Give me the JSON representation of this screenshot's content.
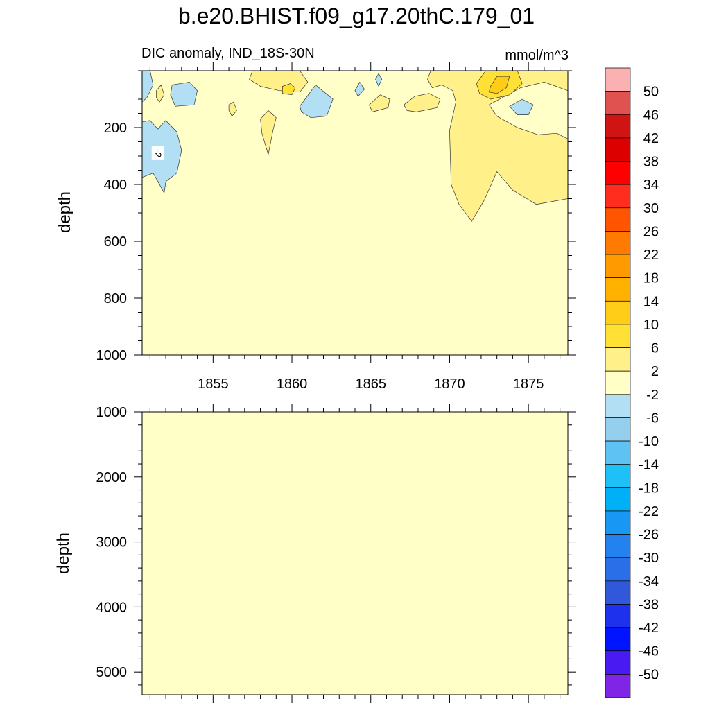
{
  "chart_data": [
    {
      "type": "heatmap",
      "title": "b.e20.BHIST.f09_g17.20thC.179_01",
      "subtitle_left": "DIC anomaly, IND_18S-30N",
      "subtitle_right": "mmol/m^3",
      "ylabel": "depth",
      "xlim": [
        1850.5,
        1877.5
      ],
      "ylim": [
        1000,
        0
      ],
      "xticks": [
        1855,
        1860,
        1865,
        1870,
        1875
      ],
      "yticks": [
        200,
        400,
        600,
        800,
        1000
      ],
      "background_level": 0,
      "contour_label": "-2",
      "regions": [
        {
          "value": -4,
          "points": [
            [
              1850.5,
              0
            ],
            [
              1851.0,
              0
            ],
            [
              1851.2,
              50
            ],
            [
              1850.8,
              95
            ],
            [
              1850.5,
              110
            ]
          ]
        },
        {
          "value": 4,
          "points": [
            [
              1851.4,
              70
            ],
            [
              1851.7,
              50
            ],
            [
              1851.9,
              85
            ],
            [
              1851.6,
              110
            ],
            [
              1851.4,
              95
            ]
          ]
        },
        {
          "value": -4,
          "points": [
            [
              1852.4,
              50
            ],
            [
              1853.5,
              40
            ],
            [
              1854.0,
              70
            ],
            [
              1853.8,
              120
            ],
            [
              1852.6,
              125
            ],
            [
              1852.3,
              85
            ]
          ]
        },
        {
          "value": -4,
          "points": [
            [
              1850.5,
              180
            ],
            [
              1851.0,
              175
            ],
            [
              1851.5,
              205
            ],
            [
              1852.0,
              175
            ],
            [
              1852.7,
              215
            ],
            [
              1853.0,
              280
            ],
            [
              1852.7,
              360
            ],
            [
              1852.0,
              390
            ],
            [
              1851.9,
              430
            ],
            [
              1851.2,
              360
            ],
            [
              1850.5,
              375
            ]
          ]
        },
        {
          "value": 4,
          "points": [
            [
              1856.0,
              120
            ],
            [
              1856.3,
              110
            ],
            [
              1856.5,
              140
            ],
            [
              1856.2,
              160
            ],
            [
              1856.0,
              140
            ]
          ]
        },
        {
          "value": 4,
          "points": [
            [
              1857.5,
              0
            ],
            [
              1860.5,
              0
            ],
            [
              1861.0,
              40
            ],
            [
              1860.5,
              75
            ],
            [
              1859.2,
              70
            ],
            [
              1858.0,
              55
            ],
            [
              1857.3,
              30
            ]
          ]
        },
        {
          "value": 8,
          "points": [
            [
              1859.4,
              55
            ],
            [
              1859.9,
              45
            ],
            [
              1860.2,
              60
            ],
            [
              1860.0,
              85
            ],
            [
              1859.4,
              80
            ]
          ]
        },
        {
          "value": 4,
          "points": [
            [
              1858.0,
              170
            ],
            [
              1858.5,
              140
            ],
            [
              1859.0,
              165
            ],
            [
              1858.8,
              210
            ],
            [
              1858.5,
              295
            ],
            [
              1858.1,
              220
            ]
          ]
        },
        {
          "value": -4,
          "points": [
            [
              1860.5,
              125
            ],
            [
              1861.5,
              50
            ],
            [
              1862.6,
              100
            ],
            [
              1862.2,
              160
            ],
            [
              1861.2,
              165
            ],
            [
              1860.6,
              145
            ]
          ]
        },
        {
          "value": -4,
          "points": [
            [
              1864.0,
              70
            ],
            [
              1864.3,
              40
            ],
            [
              1864.6,
              65
            ],
            [
              1864.2,
              90
            ]
          ]
        },
        {
          "value": -4,
          "points": [
            [
              1865.3,
              30
            ],
            [
              1865.5,
              10
            ],
            [
              1865.7,
              30
            ],
            [
              1865.5,
              55
            ]
          ]
        },
        {
          "value": 4,
          "points": [
            [
              1864.9,
              120
            ],
            [
              1865.6,
              85
            ],
            [
              1866.2,
              100
            ],
            [
              1866.1,
              130
            ],
            [
              1865.1,
              145
            ]
          ]
        },
        {
          "value": 4,
          "points": [
            [
              1867.1,
              120
            ],
            [
              1867.8,
              90
            ],
            [
              1868.7,
              80
            ],
            [
              1869.4,
              100
            ],
            [
              1869.2,
              130
            ],
            [
              1867.9,
              145
            ],
            [
              1867.3,
              140
            ]
          ]
        },
        {
          "value": 4,
          "points": [
            [
              1868.8,
              0
            ],
            [
              1877.5,
              0
            ],
            [
              1877.5,
              450
            ],
            [
              1876.5,
              460
            ],
            [
              1875.5,
              470
            ],
            [
              1874.0,
              420
            ],
            [
              1873.0,
              355
            ],
            [
              1872.2,
              455
            ],
            [
              1871.4,
              530
            ],
            [
              1870.6,
              470
            ],
            [
              1870.1,
              400
            ],
            [
              1870.0,
              210
            ],
            [
              1870.4,
              110
            ],
            [
              1870.2,
              70
            ],
            [
              1869.5,
              50
            ],
            [
              1868.9,
              60
            ],
            [
              1868.6,
              30
            ]
          ]
        },
        {
          "value": 0,
          "points": [
            [
              1872.5,
              120
            ],
            [
              1874.5,
              60
            ],
            [
              1876.0,
              40
            ],
            [
              1877.5,
              70
            ],
            [
              1877.5,
              240
            ],
            [
              1876.8,
              220
            ],
            [
              1875.6,
              225
            ],
            [
              1874.3,
              200
            ],
            [
              1873.0,
              160
            ]
          ]
        },
        {
          "value": -4,
          "points": [
            [
              1873.8,
              125
            ],
            [
              1874.6,
              100
            ],
            [
              1875.3,
              120
            ],
            [
              1875.0,
              155
            ],
            [
              1874.3,
              155
            ]
          ]
        },
        {
          "value": 8,
          "points": [
            [
              1871.7,
              45
            ],
            [
              1872.3,
              0
            ],
            [
              1874.3,
              0
            ],
            [
              1874.6,
              45
            ],
            [
              1873.8,
              85
            ],
            [
              1872.6,
              100
            ],
            [
              1871.9,
              80
            ]
          ]
        },
        {
          "value": 12,
          "points": [
            [
              1872.6,
              55
            ],
            [
              1873.0,
              20
            ],
            [
              1873.8,
              20
            ],
            [
              1873.6,
              60
            ],
            [
              1873.0,
              80
            ],
            [
              1872.5,
              75
            ]
          ]
        }
      ]
    },
    {
      "type": "heatmap",
      "ylabel": "depth",
      "xlim": [
        1850.5,
        1877.5
      ],
      "ylim": [
        5350,
        1000
      ],
      "xticks": [
        1855,
        1860,
        1865,
        1870,
        1875
      ],
      "yticks": [
        1000,
        2000,
        3000,
        4000,
        5000
      ],
      "background_level": 0,
      "regions": []
    }
  ],
  "colorbar": {
    "levels": [
      "50",
      "46",
      "42",
      "38",
      "34",
      "30",
      "26",
      "22",
      "18",
      "14",
      "10",
      "6",
      "2",
      "-2",
      "-6",
      "-10",
      "-14",
      "-18",
      "-22",
      "-26",
      "-30",
      "-34",
      "-38",
      "-42",
      "-46",
      "-50"
    ],
    "colors": [
      "#fbb1b1",
      "#e0524f",
      "#d01414",
      "#dd0000",
      "#ff0000",
      "#ff2d1e",
      "#ff5400",
      "#ff7a00",
      "#ff9a00",
      "#ffb200",
      "#ffcc18",
      "#ffe135",
      "#fff08a",
      "#ffffc7",
      "#b3dff5",
      "#95cfee",
      "#5ec3f2",
      "#1ec1f7",
      "#00b0f7",
      "#1897f4",
      "#2481f0",
      "#2a6fe8",
      "#3158da",
      "#1e32ee",
      "#0014ff",
      "#4a1af2",
      "#8024e6"
    ]
  }
}
